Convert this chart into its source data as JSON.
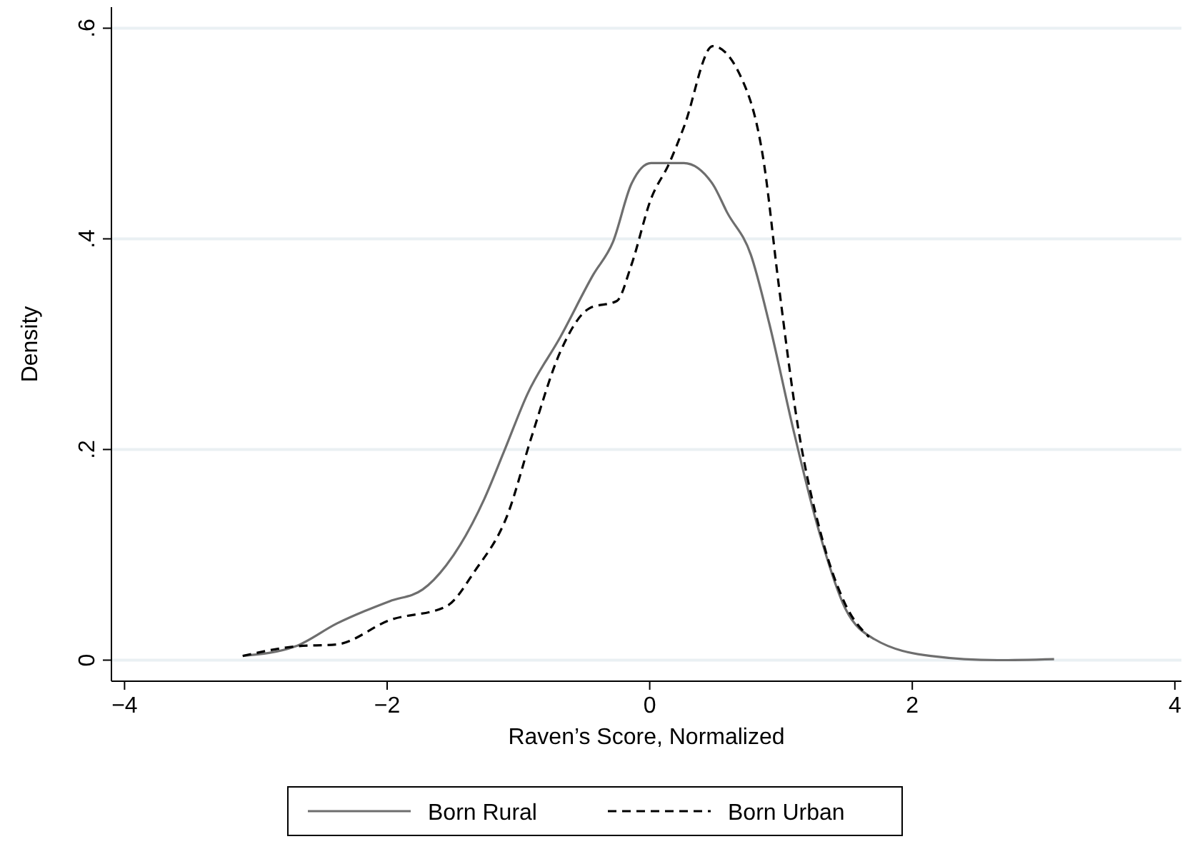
{
  "chart_data": {
    "type": "line",
    "xlabel": "Raven’s Score, Normalized",
    "ylabel": "Density",
    "xlim": [
      -4.1,
      4.05
    ],
    "xticks": [
      {
        "value": -4,
        "label": "−4"
      },
      {
        "value": -2,
        "label": "−2"
      },
      0,
      2,
      4
    ],
    "ylim": [
      -0.02,
      0.62
    ],
    "yticks": [
      0,
      {
        "value": 0.2,
        "label": ".2"
      },
      {
        "value": 0.4,
        "label": ".4"
      },
      {
        "value": 0.6,
        "label": ".6"
      }
    ],
    "grid": "y",
    "legend": "bottom",
    "series": [
      {
        "name": "Born Rural",
        "color": "#6e6e6e",
        "line_style": "solid",
        "x": [
          -3.1,
          -2.7,
          -2.38,
          -1.98,
          -1.73,
          -1.55,
          -1.26,
          -1.11,
          -0.93,
          -0.68,
          -0.43,
          -0.28,
          -0.14,
          0.01,
          0.26,
          0.48,
          0.59,
          0.77,
          0.91,
          1.09,
          1.27,
          1.49,
          1.71,
          2.14,
          2.65,
          3.08
        ],
        "values": [
          0.004,
          0.013,
          0.035,
          0.056,
          0.067,
          0.09,
          0.153,
          0.198,
          0.253,
          0.307,
          0.366,
          0.397,
          0.452,
          0.472,
          0.472,
          0.452,
          0.425,
          0.385,
          0.32,
          0.221,
          0.131,
          0.049,
          0.02,
          0.004,
          0.0,
          0.001
        ]
      },
      {
        "name": "Born Urban",
        "color": "#000000",
        "line_style": "dashed",
        "x": [
          -3.1,
          -2.7,
          -2.38,
          -1.98,
          -1.55,
          -1.33,
          -1.08,
          -0.9,
          -0.68,
          -0.46,
          -0.25,
          -0.14,
          0.01,
          0.15,
          0.26,
          0.48,
          0.69,
          0.87,
          0.98,
          1.13,
          1.31,
          1.49,
          1.67
        ],
        "values": [
          0.004,
          0.013,
          0.015,
          0.038,
          0.051,
          0.085,
          0.139,
          0.212,
          0.293,
          0.334,
          0.341,
          0.375,
          0.438,
          0.472,
          0.506,
          0.583,
          0.555,
          0.472,
          0.359,
          0.221,
          0.117,
          0.053,
          0.022
        ]
      }
    ]
  }
}
